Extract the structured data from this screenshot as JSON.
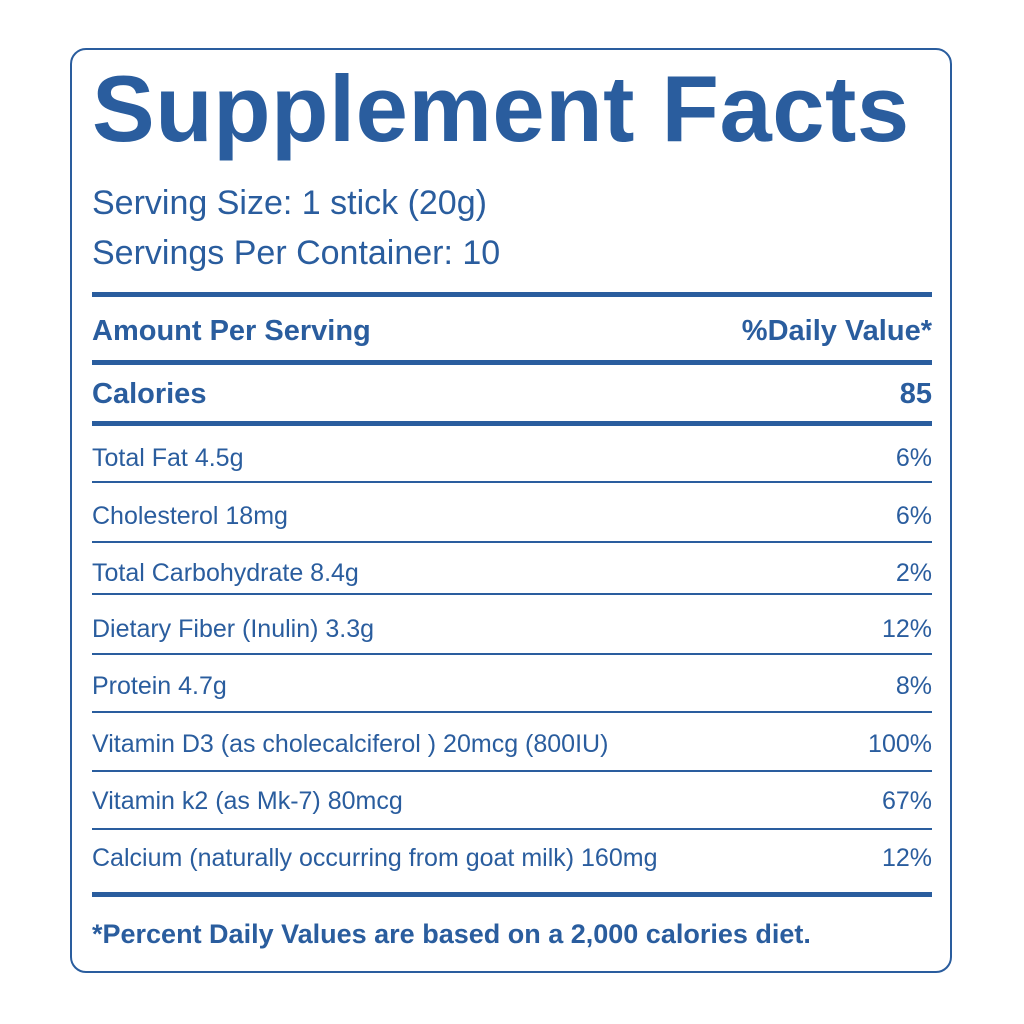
{
  "label": {
    "title": "Supplement Facts",
    "serving_size": "Serving Size: 1 stick (20g)",
    "servings_per_container": "Servings Per Container: 10",
    "header": {
      "amount_per_serving": "Amount Per Serving",
      "daily_value": "%Daily Value*"
    },
    "calories": {
      "label": "Calories",
      "value": "85"
    },
    "nutrients": [
      {
        "name": "Total Fat  4.5g",
        "dv": "6%"
      },
      {
        "name": "Cholesterol  18mg",
        "dv": "6%"
      },
      {
        "name": "Total Carbohydrate  8.4g",
        "dv": "2%"
      },
      {
        "name": "Dietary Fiber (Inulin)  3.3g",
        "dv": "12%"
      },
      {
        "name": "Protein  4.7g",
        "dv": "8%"
      },
      {
        "name": "Vitamin D3 (as cholecalciferol ) 20mcg (800IU)",
        "dv": "100%"
      },
      {
        "name": "Vitamin k2 (as Mk-7)  80mcg",
        "dv": "67%"
      },
      {
        "name": "Calcium (naturally occurring from goat milk) 160mg",
        "dv": "12%"
      }
    ],
    "footnote": "*Percent Daily Values are based on a 2,000 calories diet."
  },
  "colors": {
    "primary": "#2a5d9e",
    "background": "#ffffff"
  }
}
